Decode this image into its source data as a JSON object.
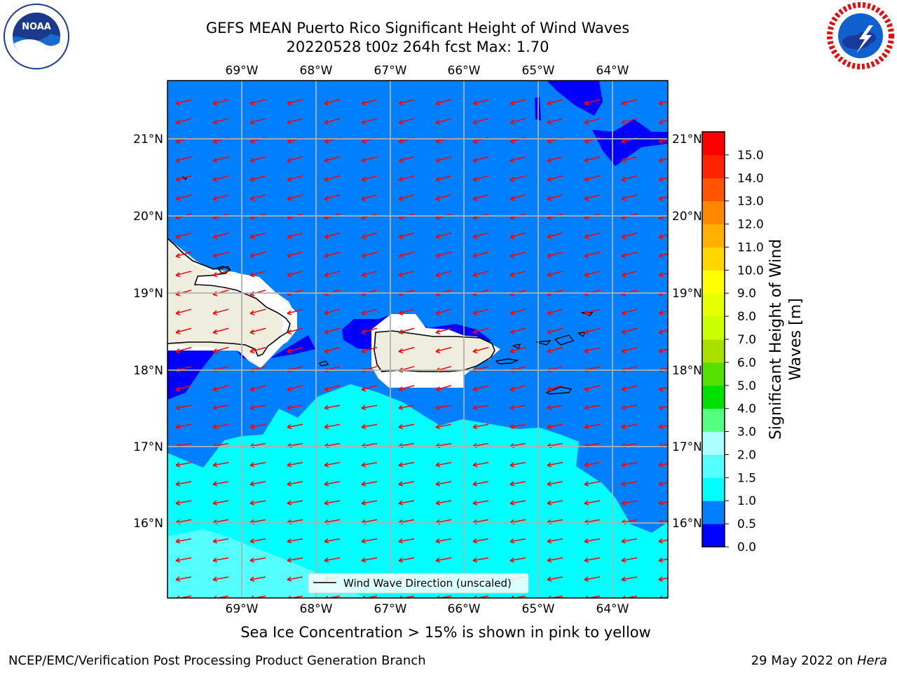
{
  "header": {
    "title_line1": "GEFS MEAN Puerto Rico Significant Height of Wind Waves",
    "title_line2": "20220528 t00z 264h fcst   Max: 1.70"
  },
  "logos": {
    "left_text": "NOAA",
    "right_text": "NATIONAL WEATHER SERVICE"
  },
  "map": {
    "lon_ticks": [
      "69°W",
      "68°W",
      "67°W",
      "66°W",
      "65°W",
      "64°W"
    ],
    "lat_ticks": [
      "21°N",
      "20°N",
      "19°N",
      "18°N",
      "17°N",
      "16°N"
    ],
    "legend_label": "Wind Wave Direction (unscaled)",
    "colors": {
      "band_0_0_5": "#0000ff",
      "band_0_5_1_0": "#0080ff",
      "band_1_0_1_5": "#00ffff",
      "band_1_5_2_0": "#55ffff",
      "land": "#efedde",
      "arrow": "#ff0000",
      "grid": "#b0b0b0"
    }
  },
  "colorbar": {
    "label_line1": "Significant Height of Wind",
    "label_line2": "Waves [m]",
    "ticks": [
      "0.0",
      "0.5",
      "1.0",
      "1.5",
      "2.0",
      "3.0",
      "4.0",
      "5.0",
      "6.0",
      "7.0",
      "8.0",
      "9.0",
      "10.0",
      "11.0",
      "12.0",
      "13.0",
      "14.0",
      "15.0"
    ],
    "colors": [
      "#0000ff",
      "#0080ff",
      "#00ffff",
      "#55ffff",
      "#aaffff",
      "#55ff80",
      "#00e000",
      "#55e000",
      "#aae000",
      "#ccff00",
      "#e6ff00",
      "#ffff00",
      "#ffd700",
      "#ffb000",
      "#ff8800",
      "#ff5500",
      "#ff2200",
      "#ff0000"
    ]
  },
  "notes": {
    "ice_note": "Sea Ice Concentration > 15% is shown in pink to yellow",
    "footer_left": "NCEP/EMC/Verification Post Processing Product Generation Branch",
    "footer_date": "29 May 2022 on",
    "footer_host": "Hera"
  }
}
